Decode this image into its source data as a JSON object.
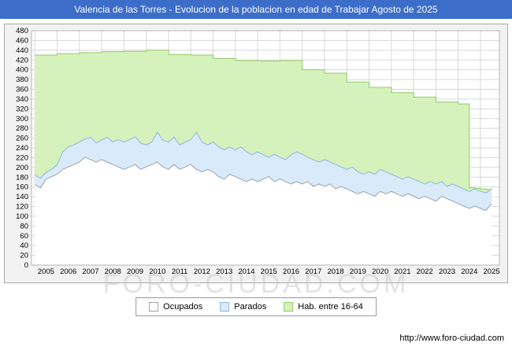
{
  "title": "Valencia de las Torres - Evolucion de la poblacion en edad de Trabajar Agosto de 2025",
  "watermark": "FORO-CIUDAD.COM",
  "footer": {
    "url": "http://www.foro-ciudad.com"
  },
  "colors": {
    "title_bar": "#3c6ec9",
    "grid": "#d8d8d8",
    "plot_bg": "#ffffff",
    "margin_bg": "#f2f2f2",
    "box_border": "#a9a9a9"
  },
  "legend": [
    {
      "label": "Ocupados",
      "fill": "#ffffff",
      "stroke": "#98a2ac"
    },
    {
      "label": "Parados",
      "fill": "#d9eafa",
      "stroke": "#8fb7dd"
    },
    {
      "label": "Hab. entre 16-64",
      "fill": "#d6f2bc",
      "stroke": "#90c967"
    }
  ],
  "chart_data": {
    "type": "area",
    "title": "Valencia de las Torres - Evolucion de la poblacion en edad de Trabajar Agosto de 2025",
    "xlabel": "",
    "ylabel": "",
    "xlim": [
      2004.85,
      2025.85
    ],
    "ylim": [
      0,
      480
    ],
    "y_tick_step": 20,
    "grid": true,
    "legend_position": "bottom",
    "x_start": 2005,
    "x_step": 0.25,
    "x_axis_ticks": [
      "2005",
      "2006",
      "2007",
      "2008",
      "2009",
      "2010",
      "2011",
      "2012",
      "2013",
      "2014",
      "2015",
      "2016",
      "2017",
      "2018",
      "2019",
      "2020",
      "2021",
      "2022",
      "2023",
      "2024",
      "2025"
    ],
    "series": [
      {
        "name": "Hab. entre 16-64",
        "step": true,
        "fill": "#d6f2bc",
        "stroke": "#90c967",
        "values": [
          430,
          430,
          430,
          430,
          433,
          433,
          433,
          433,
          435,
          435,
          435,
          435,
          437,
          437,
          437,
          437,
          438,
          438,
          438,
          438,
          440,
          440,
          440,
          440,
          431,
          431,
          431,
          431,
          430,
          430,
          430,
          430,
          423,
          423,
          423,
          423,
          419,
          419,
          419,
          419,
          418,
          418,
          418,
          418,
          419,
          419,
          419,
          419,
          400,
          400,
          400,
          400,
          393,
          393,
          393,
          393,
          375,
          375,
          375,
          375,
          364,
          364,
          364,
          364,
          353,
          353,
          353,
          353,
          344,
          344,
          344,
          344,
          334,
          334,
          334,
          334,
          330,
          330,
          158,
          157,
          156,
          155,
          157
        ]
      },
      {
        "name": "Parados",
        "step": false,
        "fill": "#d9eafa",
        "stroke": "#8fb7dd",
        "values": [
          185,
          178,
          190,
          196,
          205,
          232,
          242,
          246,
          252,
          258,
          262,
          250,
          256,
          262,
          252,
          257,
          252,
          257,
          263,
          250,
          246,
          252,
          272,
          256,
          252,
          262,
          246,
          252,
          257,
          272,
          252,
          246,
          252,
          242,
          236,
          242,
          236,
          242,
          232,
          226,
          232,
          226,
          221,
          227,
          221,
          216,
          226,
          232,
          227,
          221,
          216,
          211,
          216,
          211,
          206,
          201,
          196,
          201,
          191,
          186,
          191,
          186,
          196,
          191,
          186,
          181,
          176,
          181,
          176,
          171,
          166,
          171,
          166,
          171,
          161,
          166,
          161,
          156,
          151,
          156,
          151,
          148,
          156
        ]
      },
      {
        "name": "Ocupados",
        "step": false,
        "fill": "#ffffff",
        "stroke": "#98a2ac",
        "values": [
          165,
          158,
          176,
          181,
          186,
          196,
          201,
          206,
          211,
          221,
          216,
          211,
          216,
          211,
          206,
          201,
          196,
          201,
          206,
          196,
          201,
          206,
          211,
          201,
          196,
          206,
          196,
          201,
          206,
          196,
          191,
          196,
          191,
          181,
          176,
          186,
          181,
          176,
          171,
          176,
          171,
          176,
          181,
          171,
          176,
          171,
          166,
          171,
          166,
          171,
          161,
          166,
          161,
          166,
          156,
          161,
          156,
          151,
          146,
          151,
          146,
          141,
          151,
          146,
          151,
          146,
          141,
          146,
          141,
          136,
          141,
          136,
          131,
          141,
          136,
          131,
          126,
          121,
          116,
          121,
          116,
          112,
          126
        ]
      }
    ]
  }
}
